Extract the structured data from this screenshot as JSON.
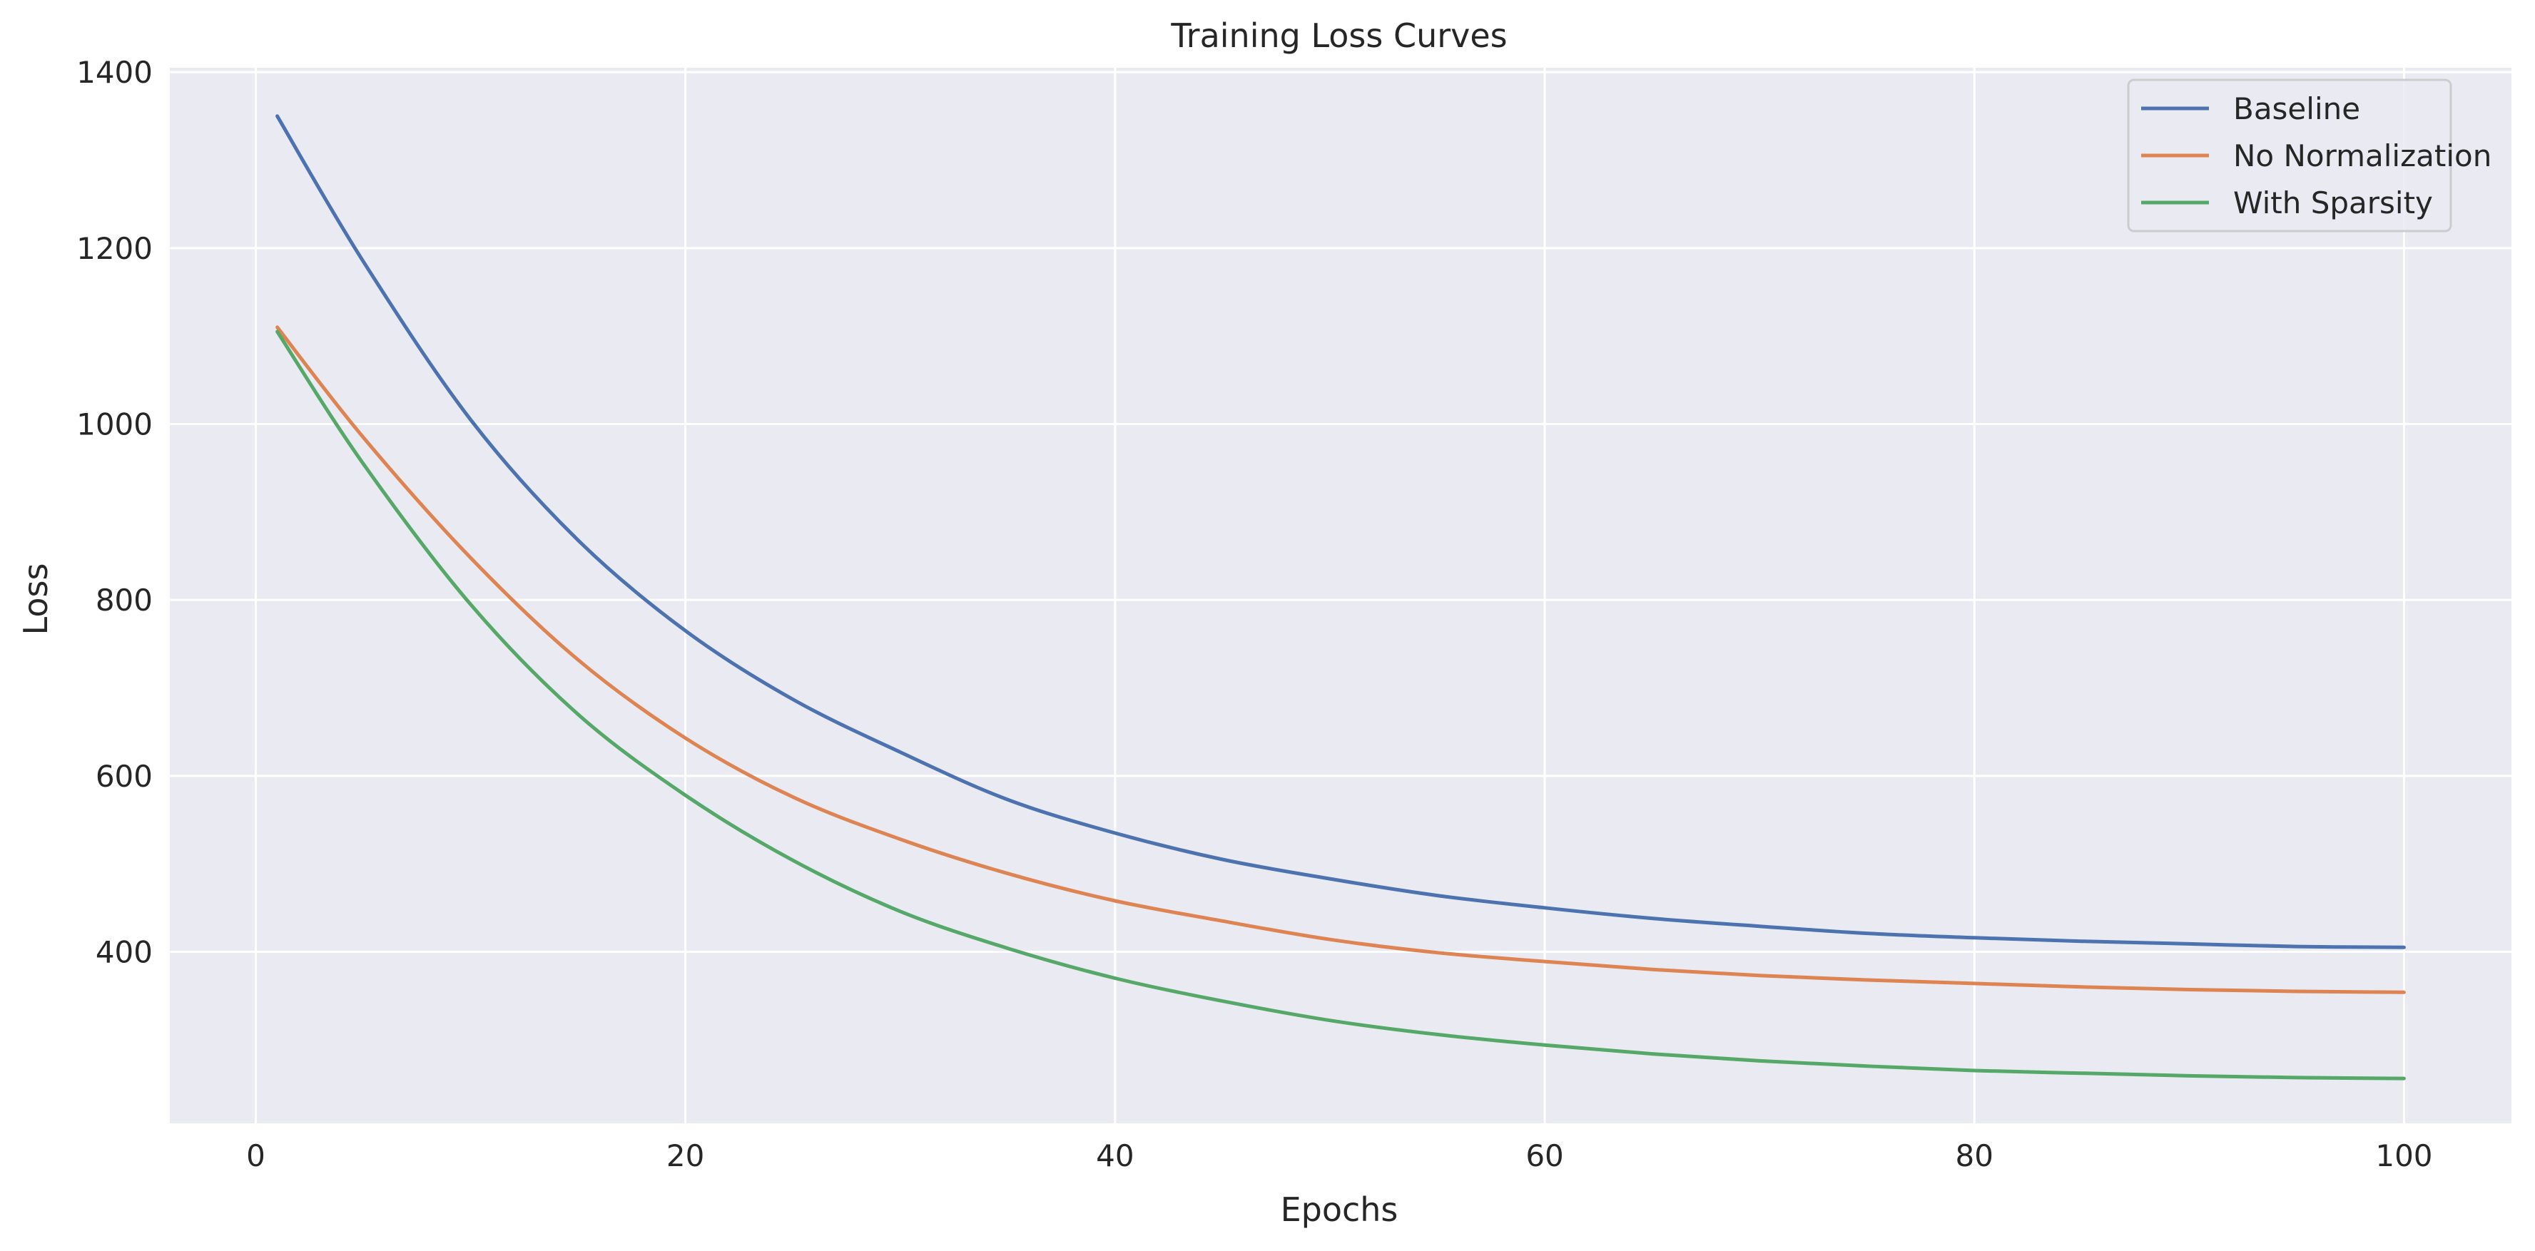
{
  "chart_data": {
    "type": "line",
    "title": "Training Loss Curves",
    "xlabel": "Epochs",
    "ylabel": "Loss",
    "xlim": [
      -4,
      105
    ],
    "ylim": [
      205,
      1405
    ],
    "xticks": [
      0,
      20,
      40,
      60,
      80,
      100
    ],
    "yticks": [
      400,
      600,
      800,
      1000,
      1200,
      1400
    ],
    "grid": true,
    "legend_position": "top-right",
    "background": "#eaeaf2",
    "series": [
      {
        "name": "Baseline",
        "color": "#4c72b0",
        "x": [
          1,
          5,
          10,
          15,
          20,
          25,
          30,
          35,
          40,
          45,
          50,
          55,
          60,
          65,
          70,
          75,
          80,
          85,
          90,
          95,
          100
        ],
        "y": [
          1350,
          1185,
          1005,
          868,
          765,
          687,
          627,
          573,
          535,
          505,
          483,
          464,
          450,
          438,
          429,
          421,
          416,
          412,
          409,
          406,
          405
        ]
      },
      {
        "name": "No Normalization",
        "color": "#dd8452",
        "x": [
          1,
          5,
          10,
          15,
          20,
          25,
          30,
          35,
          40,
          45,
          50,
          55,
          60,
          65,
          70,
          75,
          80,
          85,
          90,
          95,
          100
        ],
        "y": [
          1110,
          985,
          848,
          732,
          643,
          576,
          528,
          489,
          458,
          435,
          414,
          399,
          389,
          380,
          373,
          368,
          364,
          360,
          357,
          355,
          354
        ]
      },
      {
        "name": "With Sparsity",
        "color": "#55a868",
        "x": [
          1,
          5,
          10,
          15,
          20,
          25,
          30,
          35,
          40,
          45,
          50,
          55,
          60,
          65,
          70,
          75,
          80,
          85,
          90,
          95,
          100
        ],
        "y": [
          1105,
          955,
          795,
          670,
          578,
          504,
          446,
          404,
          370,
          344,
          322,
          306,
          294,
          284,
          276,
          270,
          265,
          262,
          259,
          257,
          256
        ]
      }
    ]
  }
}
